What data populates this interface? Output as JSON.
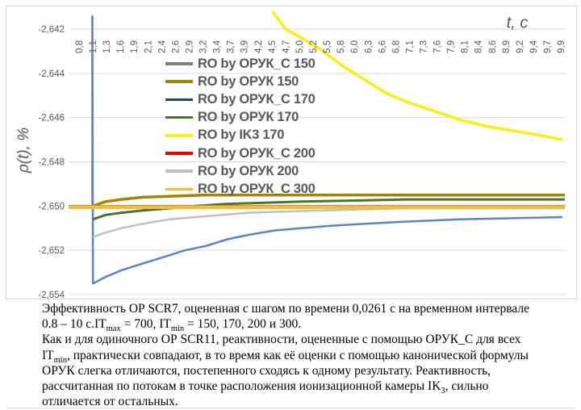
{
  "chart_data": {
    "type": "line",
    "title": "",
    "x_axis": {
      "title": "t, c",
      "tick_labels": [
        "0,8",
        "1,1",
        "1,3",
        "1,6",
        "1,9",
        "2,1",
        "2,4",
        "2,6",
        "2,9",
        "3,2",
        "3,4",
        "3,7",
        "3,9",
        "4,2",
        "4,5",
        "4,7",
        "5,0",
        "5,2",
        "5,5",
        "5,8",
        "6,0",
        "6,3",
        "6,6",
        "6,8",
        "7,1",
        "7,3",
        "7,6",
        "7,9",
        "8,1",
        "8,4",
        "8,6",
        "8,9",
        "9,2",
        "9,4",
        "9,7",
        "9,9"
      ],
      "range": [
        0.8,
        9.9
      ]
    },
    "y_axis": {
      "title": "ρ(t), %",
      "tick_labels": [
        "-2,642",
        "-2,644",
        "-2,646",
        "-2,648",
        "-2,650",
        "-2,652",
        "-2,654"
      ],
      "range": [
        -2.654,
        -2.642
      ],
      "tick_step": 0.002
    },
    "gridlines": "horizontal",
    "legend_position": "center-left-of-plot",
    "series": [
      {
        "label": "RO by ОРУК_С 150",
        "in_legend": true,
        "color": "#808080",
        "width": 1.6,
        "z": 3,
        "points": [
          [
            0.602,
            -2.65
          ],
          [
            1.044,
            -2.65
          ],
          [
            1.045,
            -2.6414
          ],
          [
            1.047,
            -2.65
          ],
          [
            9.977,
            -2.65
          ]
        ]
      },
      {
        "label": "RO by ОРУК 150",
        "in_legend": true,
        "color": "#A28400",
        "width": 3.5,
        "z": 7,
        "points": [
          [
            1.06,
            -2.65
          ],
          [
            1.3,
            -2.6498
          ],
          [
            1.6,
            -2.6497
          ],
          [
            2.0,
            -2.6496
          ],
          [
            2.6,
            -2.64955
          ],
          [
            3.2,
            -2.6495
          ],
          [
            6.0,
            -2.6495
          ],
          [
            9.977,
            -2.6495
          ]
        ]
      },
      {
        "label": "RO by ОРУК_С 170",
        "in_legend": true,
        "color": "#264478",
        "width": 2,
        "z": 1,
        "points": [
          [
            0.602,
            -2.65
          ],
          [
            9.977,
            -2.65
          ]
        ]
      },
      {
        "label": "RO by ОРУК 170",
        "in_legend": true,
        "color": "#4E7031",
        "width": 3,
        "z": 6,
        "points": [
          [
            1.06,
            -2.6506
          ],
          [
            1.3,
            -2.6504
          ],
          [
            1.6,
            -2.6503
          ],
          [
            2.0,
            -2.6502
          ],
          [
            2.5,
            -2.6501
          ],
          [
            3.0,
            -2.65
          ],
          [
            3.6,
            -2.6499
          ],
          [
            4.3,
            -2.64985
          ],
          [
            5.0,
            -2.6498
          ],
          [
            6.0,
            -2.64975
          ],
          [
            7.0,
            -2.6497
          ],
          [
            9.977,
            -2.6497
          ]
        ]
      },
      {
        "label": "RO by IK3 170",
        "in_legend": true,
        "color": "#FBEE18",
        "width": 3.6,
        "z": 9,
        "points": [
          [
            4.45,
            -2.6412
          ],
          [
            4.7,
            -2.642
          ],
          [
            5.0,
            -2.6424
          ],
          [
            5.4,
            -2.643
          ],
          [
            5.8,
            -2.6437
          ],
          [
            6.2,
            -2.6443
          ],
          [
            6.6,
            -2.6449
          ],
          [
            7.0,
            -2.6453
          ],
          [
            7.5,
            -2.6457
          ],
          [
            8.0,
            -2.6461
          ],
          [
            8.5,
            -2.6464
          ],
          [
            9.0,
            -2.6466
          ],
          [
            9.5,
            -2.6468
          ],
          [
            9.93,
            -2.647
          ]
        ]
      },
      {
        "label": "RO by ОРУК_С 200",
        "in_legend": true,
        "color": "#E00000",
        "width": 2,
        "z": 2,
        "points": [
          [
            0.602,
            -2.65
          ],
          [
            9.977,
            -2.65
          ]
        ]
      },
      {
        "label": "RO by ОРУК 200",
        "in_legend": true,
        "color": "#BFBFBF",
        "width": 2.5,
        "z": 5,
        "points": [
          [
            1.06,
            -2.6514
          ],
          [
            1.3,
            -2.6512
          ],
          [
            1.6,
            -2.651
          ],
          [
            2.0,
            -2.6508
          ],
          [
            2.5,
            -2.6506
          ],
          [
            3.0,
            -2.6505
          ],
          [
            3.5,
            -2.6504
          ],
          [
            4.0,
            -2.6503
          ],
          [
            4.6,
            -2.65025
          ],
          [
            5.4,
            -2.6502
          ],
          [
            6.2,
            -2.65015
          ],
          [
            7.0,
            -2.6501
          ],
          [
            9.977,
            -2.6501
          ]
        ]
      },
      {
        "label": "RO by ОРУК_С 300",
        "in_legend": true,
        "color": "#F2BE34",
        "width": 4.5,
        "z": 8,
        "points": [
          [
            0.602,
            -2.65005
          ],
          [
            9.977,
            -2.65005
          ]
        ]
      },
      {
        "label": null,
        "in_legend": false,
        "color": "#5B83C7",
        "width": 2.5,
        "z": 4,
        "points": [
          [
            1.052,
            -2.6414
          ],
          [
            1.062,
            -2.6535
          ],
          [
            1.3,
            -2.6532
          ],
          [
            1.6,
            -2.6529
          ],
          [
            2.0,
            -2.6526
          ],
          [
            2.4,
            -2.6523
          ],
          [
            2.8,
            -2.652
          ],
          [
            3.2,
            -2.6518
          ],
          [
            3.6,
            -2.6515
          ],
          [
            4.0,
            -2.6513
          ],
          [
            4.5,
            -2.6511
          ],
          [
            5.0,
            -2.651
          ],
          [
            5.5,
            -2.6509
          ],
          [
            6.2,
            -2.6508
          ],
          [
            7.0,
            -2.6507
          ],
          [
            8.0,
            -2.6506
          ],
          [
            9.93,
            -2.6505
          ]
        ]
      }
    ]
  },
  "caption": {
    "lines": [
      [
        {
          "t": "Эффективность ОР SCR7, оцененная с шагом по времени 0,0261 с на временном интервале"
        }
      ],
      [
        {
          "t": "0.8 – 10 с.IT"
        },
        {
          "t": "max",
          "sub": true
        },
        {
          "t": " = 700, IT"
        },
        {
          "t": "min",
          "sub": true
        },
        {
          "t": " = 150, 170, 200 и 300."
        }
      ],
      [
        {
          "t": "Как и для одиночного ОР SCR11, реактивности, оцененные с помощью ОРУК_С для всех"
        }
      ],
      [
        {
          "t": "IT"
        },
        {
          "t": "min",
          "sub": true
        },
        {
          "t": ", практически совпадают, в то время как её оценки с помощью канонической формулы"
        }
      ],
      [
        {
          "t": "ОРУК слегка отличаются, постепенного сходясь к одному результату. Реактивность,"
        }
      ],
      [
        {
          "t": "рассчитанная по потокам в точке расположения ионизационной камеры IK"
        },
        {
          "t": "3",
          "sub": true
        },
        {
          "t": ", сильно"
        }
      ],
      [
        {
          "t": "отличается от остальных."
        }
      ]
    ]
  },
  "colors": {
    "gridline": "#D9D9D9",
    "axis_text": "#595959",
    "frame_border": "#D6D6D6",
    "caption_text": "#000000"
  }
}
